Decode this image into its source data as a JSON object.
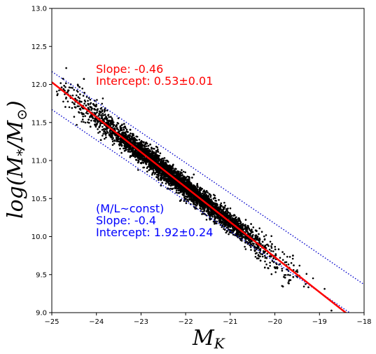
{
  "chart_data": {
    "type": "scatter",
    "xlabel_main": "M",
    "xlabel_sub": "K",
    "ylabel_parts": {
      "pre": "log(M",
      "sub_star": "*",
      "mid": "/M",
      "sub_sun": "⊙",
      "post": ")"
    },
    "xlim": [
      -25,
      -18
    ],
    "ylim": [
      9.0,
      13.0
    ],
    "xticks": [
      -25,
      -24,
      -23,
      -22,
      -21,
      -20,
      -19,
      -18
    ],
    "xtick_labels": [
      "−25",
      "−24",
      "−23",
      "−22",
      "−21",
      "−20",
      "−19",
      "−18"
    ],
    "yticks": [
      9.0,
      9.5,
      10.0,
      10.5,
      11.0,
      11.5,
      12.0,
      12.5,
      13.0
    ],
    "ytick_labels": [
      "9.0",
      "9.5",
      "10.0",
      "10.5",
      "11.0",
      "11.5",
      "12.0",
      "12.5",
      "13.0"
    ],
    "fit_line": {
      "slope": -0.46,
      "intercept": 0.53,
      "color": "#ff0000"
    },
    "const_lines": {
      "slope": -0.4,
      "upper_intercept": 2.17,
      "lower_intercept": 1.67,
      "color": "#0000cc"
    },
    "scatter_color": "#000000",
    "scatter_band": {
      "slope": -0.46,
      "intercept": 0.53,
      "x_range": [
        -25,
        -18
      ],
      "scatter": 0.07
    },
    "annotations": {
      "fit": {
        "line1": "Slope: -0.46",
        "line2": "Intercept: 0.53±0.01",
        "color": "#ff0000"
      },
      "const": {
        "line1": "(M/L~const)",
        "line2": "Slope: -0.4",
        "line3": "Intercept: 1.92±0.24",
        "color": "#0000ff"
      }
    },
    "grid": false
  }
}
